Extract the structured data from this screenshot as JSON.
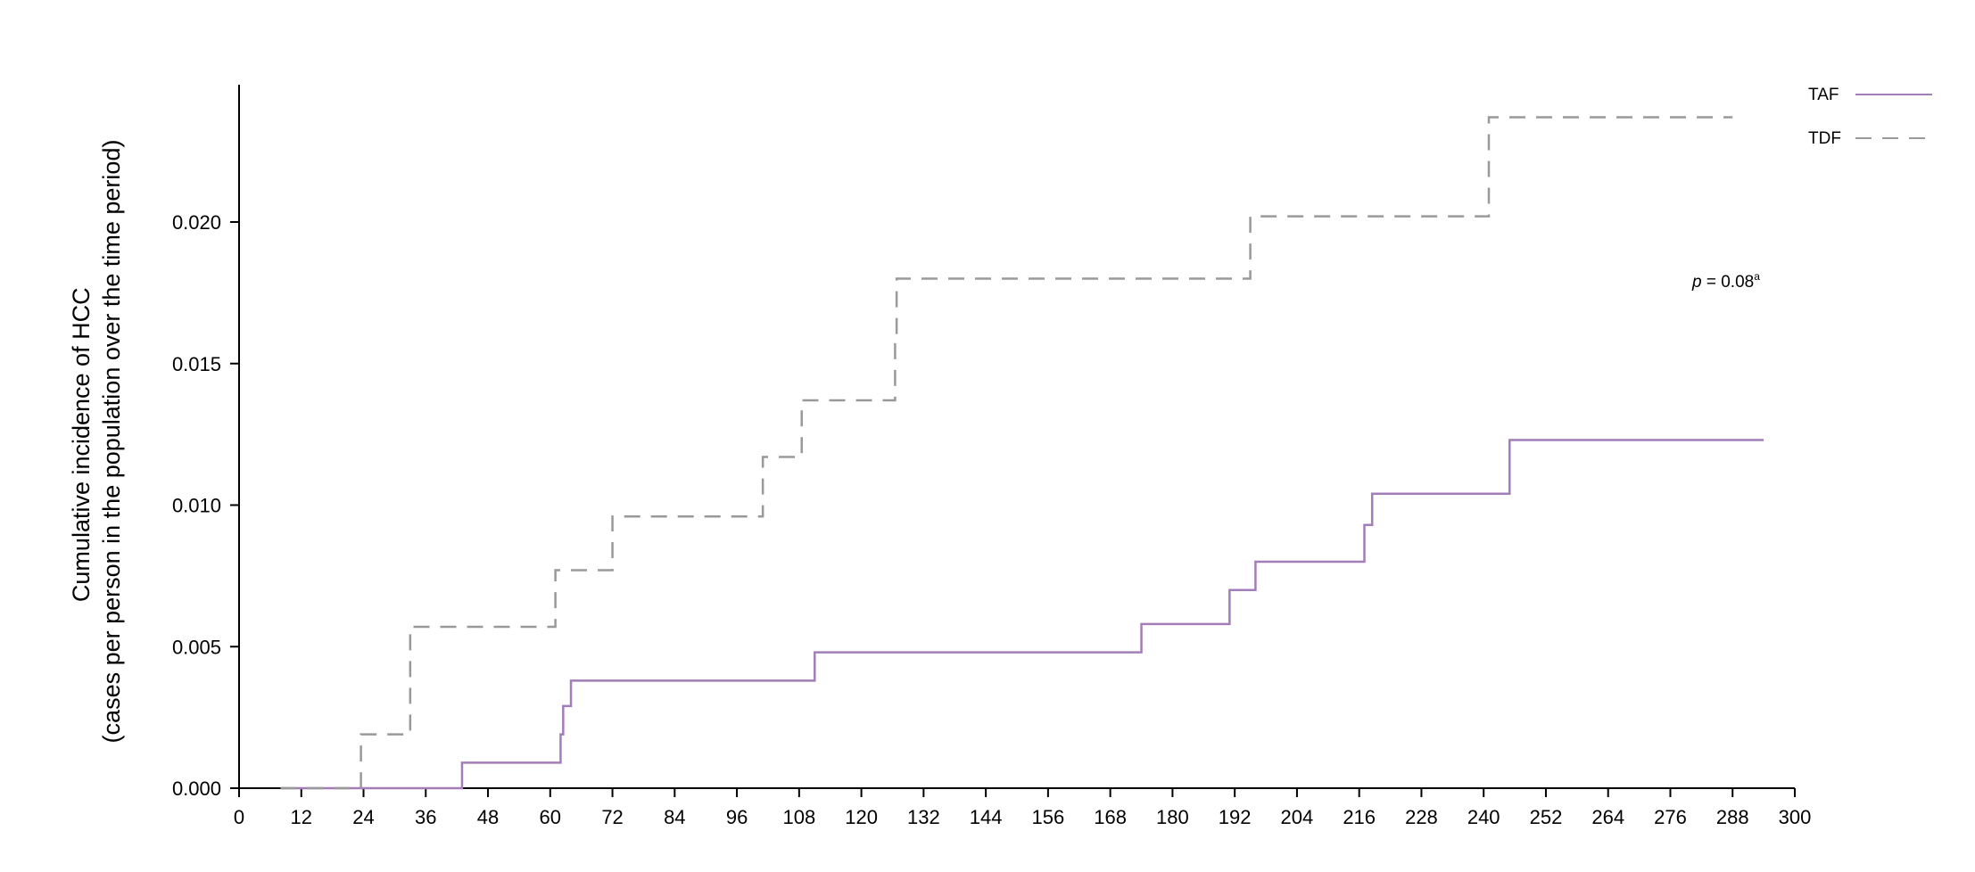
{
  "chart_data": {
    "type": "line",
    "step": true,
    "title": "",
    "xlabel": "",
    "ylabel_lines": [
      "Cumulative incidence of HCC",
      "(cases per person in the population over the time period)"
    ],
    "xlim": [
      0,
      300
    ],
    "ylim": [
      0,
      0.025
    ],
    "xticks": [
      0,
      12,
      24,
      36,
      48,
      60,
      72,
      84,
      96,
      108,
      120,
      132,
      144,
      156,
      168,
      180,
      192,
      204,
      216,
      228,
      240,
      252,
      264,
      276,
      288,
      300
    ],
    "yticks": [
      0.0,
      0.005,
      0.01,
      0.015,
      0.02
    ],
    "ytick_labels": [
      "0.000",
      "0.005",
      "0.010",
      "0.015",
      "0.020"
    ],
    "grid": false,
    "legend_position": "top-right",
    "series": [
      {
        "name": "TAF",
        "color": "#a37db8",
        "line_style": "solid",
        "x": [
          8,
          43,
          62,
          62.5,
          64,
          111,
          174,
          191,
          196,
          217,
          218.5,
          245,
          294
        ],
        "y": [
          0.0,
          0.0009,
          0.0019,
          0.0029,
          0.0038,
          0.0048,
          0.0058,
          0.007,
          0.008,
          0.0093,
          0.0104,
          0.0123,
          0.0123
        ]
      },
      {
        "name": "TDF",
        "color": "#999999",
        "line_style": "dashed",
        "x": [
          8,
          23.5,
          33,
          61,
          72,
          101,
          108.5,
          126.5,
          126.8,
          195,
          241,
          288
        ],
        "y": [
          0.0,
          0.0019,
          0.0057,
          0.0077,
          0.0096,
          0.0117,
          0.0137,
          0.0158,
          0.018,
          0.0202,
          0.0237,
          0.0237
        ]
      }
    ],
    "annotation": {
      "italic": "p",
      "text": " = 0.08",
      "superscript": "a"
    }
  }
}
